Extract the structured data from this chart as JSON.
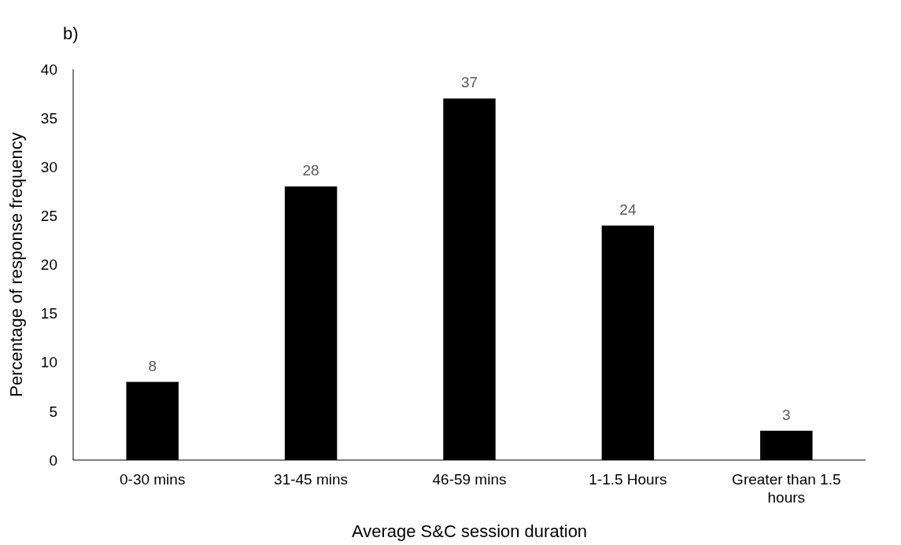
{
  "chart_data": {
    "type": "bar",
    "title": "b)",
    "xlabel": "Average S&C session duration",
    "ylabel": "Percentage of response frequency",
    "categories": [
      "0-30 mins",
      "31-45 mins",
      "46-59 mins",
      "1-1.5 Hours",
      "Greater than 1.5 hours"
    ],
    "values": [
      8,
      28,
      37,
      24,
      3
    ],
    "color": "#000000",
    "ylim": [
      0,
      40
    ],
    "yticks": [
      0,
      5,
      10,
      15,
      20,
      25,
      30,
      35,
      40
    ],
    "data_labels": true,
    "grid": false
  }
}
